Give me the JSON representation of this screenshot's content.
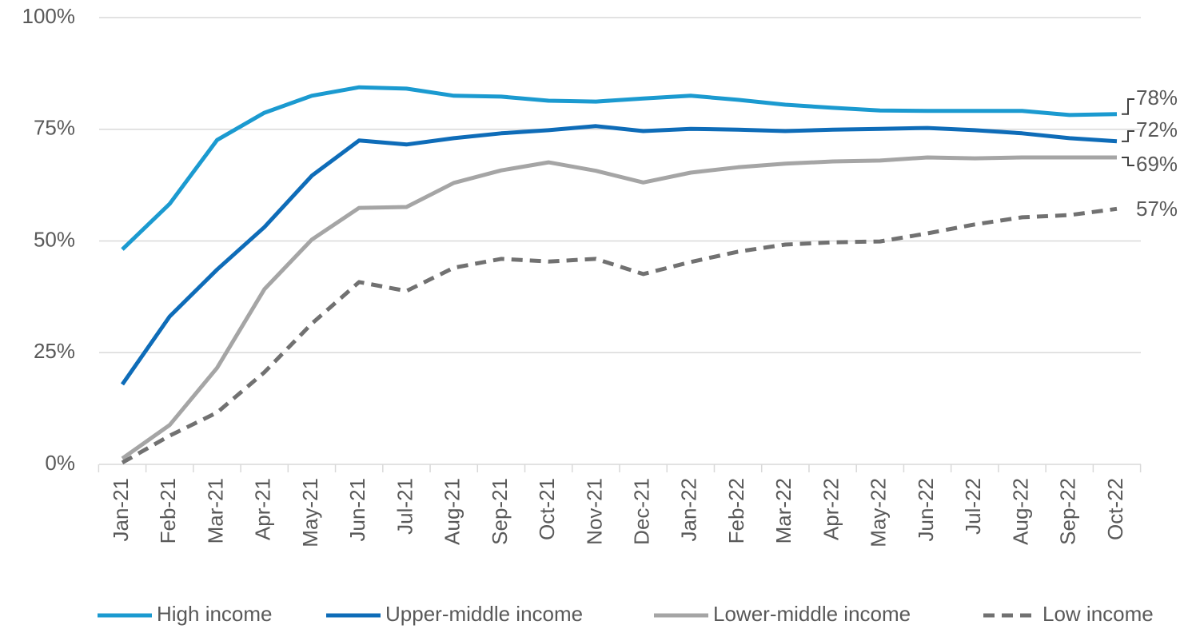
{
  "chart_data": {
    "type": "line",
    "x": [
      "Jan-21",
      "Feb-21",
      "Mar-21",
      "Apr-21",
      "May-21",
      "Jun-21",
      "Jul-21",
      "Aug-21",
      "Sep-21",
      "Oct-21",
      "Nov-21",
      "Dec-21",
      "Jan-22",
      "Feb-22",
      "Mar-22",
      "Apr-22",
      "May-22",
      "Jun-22",
      "Jul-22",
      "Aug-22",
      "Sep-22",
      "Oct-22"
    ],
    "series": [
      {
        "name": "High income",
        "color": "#1b9ad0",
        "dash": "solid",
        "values": [
          48.1,
          58.3,
          72.6,
          78.7,
          82.5,
          84.4,
          84.1,
          82.5,
          82.3,
          81.4,
          81.2,
          81.9,
          82.5,
          81.6,
          80.5,
          79.8,
          79.2,
          79.1,
          79.1,
          79.1,
          78.2,
          78.4
        ],
        "value_labels": [
          null,
          null,
          null,
          null,
          null,
          null,
          null,
          null,
          null,
          null,
          null,
          null,
          null,
          null,
          null,
          null,
          null,
          null,
          null,
          null,
          null,
          "78%"
        ]
      },
      {
        "name": "Upper-middle income",
        "color": "#0e6cb8",
        "dash": "solid",
        "values": [
          17.9,
          33.1,
          43.6,
          53.1,
          64.6,
          72.5,
          71.6,
          73.0,
          74.1,
          74.8,
          75.7,
          74.6,
          75.1,
          74.9,
          74.6,
          74.9,
          75.1,
          75.3,
          74.8,
          74.1,
          73.0,
          72.3
        ],
        "value_labels": [
          null,
          null,
          null,
          null,
          null,
          null,
          null,
          null,
          null,
          null,
          null,
          null,
          null,
          null,
          null,
          null,
          null,
          null,
          null,
          null,
          null,
          "72%"
        ]
      },
      {
        "name": "Lower-middle income",
        "color": "#a5a5a5",
        "dash": "solid",
        "values": [
          1.3,
          8.8,
          21.6,
          39.2,
          50.3,
          57.4,
          57.6,
          63.0,
          65.8,
          67.6,
          65.7,
          63.1,
          65.3,
          66.5,
          67.3,
          67.8,
          68.0,
          68.7,
          68.5,
          68.7,
          68.7,
          68.7
        ],
        "value_labels": [
          null,
          null,
          null,
          null,
          null,
          null,
          null,
          null,
          null,
          null,
          null,
          null,
          null,
          null,
          null,
          null,
          null,
          null,
          null,
          null,
          null,
          "69%"
        ]
      },
      {
        "name": "Low income",
        "color": "#717171",
        "dash": "dashed",
        "values": [
          0.4,
          6.4,
          11.6,
          20.6,
          31.5,
          40.8,
          38.8,
          44.0,
          46.0,
          45.4,
          46.0,
          42.6,
          45.3,
          47.6,
          49.2,
          49.7,
          49.9,
          51.7,
          53.7,
          55.3,
          55.8,
          57.2
        ],
        "value_labels": [
          null,
          null,
          null,
          null,
          null,
          null,
          null,
          null,
          null,
          null,
          null,
          null,
          null,
          null,
          null,
          null,
          null,
          null,
          null,
          null,
          null,
          "57%"
        ]
      }
    ],
    "ylim": [
      0,
      100
    ],
    "yticks": [
      {
        "value": 0,
        "label": "0%"
      },
      {
        "value": 25,
        "label": "25%"
      },
      {
        "value": 50,
        "label": "50%"
      },
      {
        "value": 75,
        "label": "75%"
      },
      {
        "value": 100,
        "label": "100%"
      }
    ],
    "grid": true,
    "legend": "bottom"
  }
}
